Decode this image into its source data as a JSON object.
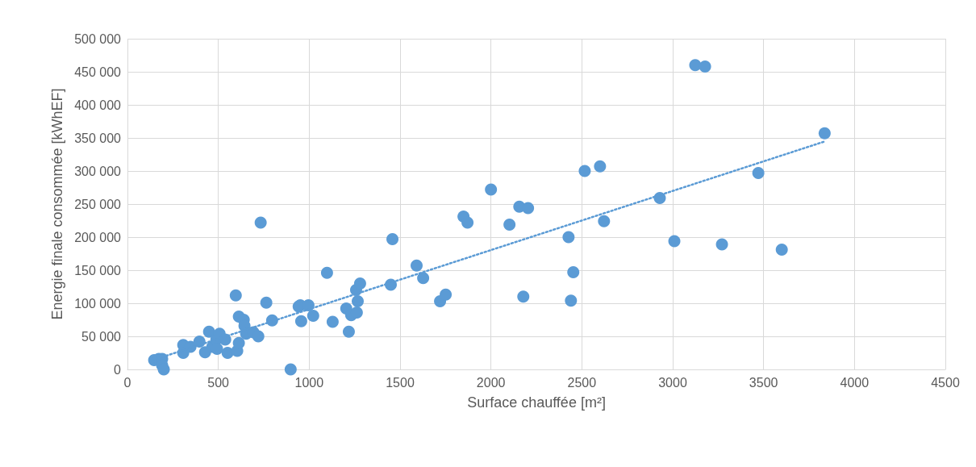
{
  "chart_data": {
    "type": "scatter",
    "xlabel": "Surface chauffée [m²]",
    "ylabel": "Energie finale consommée [kWhEF]",
    "xlim": [
      0,
      4500
    ],
    "xticks": [
      0,
      500,
      1000,
      1500,
      2000,
      2500,
      3000,
      3500,
      4000,
      4500
    ],
    "ylim": [
      0,
      500000
    ],
    "yticks": [
      {
        "value": 0,
        "label": "0"
      },
      {
        "value": 50000,
        "label": "50 000"
      },
      {
        "value": 100000,
        "label": "100 000"
      },
      {
        "value": 150000,
        "label": "150 000"
      },
      {
        "value": 200000,
        "label": "200 000"
      },
      {
        "value": 250000,
        "label": "250 000"
      },
      {
        "value": 300000,
        "label": "300 000"
      },
      {
        "value": 350000,
        "label": "350 000"
      },
      {
        "value": 400000,
        "label": "400 000"
      },
      {
        "value": 450000,
        "label": "450 000"
      },
      {
        "value": 500000,
        "label": "500 000"
      }
    ],
    "grid": true,
    "marker": "circle",
    "series": [
      {
        "color": "#5b9bd5",
        "x": [
          147,
          173,
          191,
          191,
          200,
          307,
          307,
          347,
          396,
          427,
          449,
          467,
          489,
          493,
          507,
          538,
          551,
          604,
          596,
          613,
          613,
          640,
          644,
          653,
          693,
          720,
          733,
          764,
          796,
          898,
          942,
          951,
          956,
          996,
          1022,
          1098,
          1129,
          1204,
          1218,
          1231,
          1258,
          1262,
          1267,
          1280,
          1449,
          1458,
          1591,
          1627,
          1720,
          1751,
          1849,
          1871,
          2000,
          2102,
          2156,
          2178,
          2204,
          2427,
          2440,
          2453,
          2516,
          2600,
          2622,
          2929,
          3009,
          3124,
          3178,
          3271,
          3471,
          3600,
          3836
        ],
        "values": [
          14000,
          16000,
          16000,
          6000,
          0,
          37000,
          25000,
          34000,
          42000,
          26000,
          57000,
          34000,
          45000,
          31000,
          54000,
          45000,
          25000,
          28000,
          112000,
          80000,
          40000,
          75000,
          66000,
          54000,
          56000,
          50000,
          222000,
          101000,
          74000,
          0,
          95000,
          97000,
          73000,
          97000,
          81000,
          146000,
          72000,
          92000,
          57000,
          82000,
          120000,
          86000,
          103000,
          130000,
          128000,
          197000,
          157000,
          138000,
          103000,
          113000,
          231000,
          222000,
          272000,
          219000,
          246000,
          110000,
          244000,
          200000,
          104000,
          147000,
          300000,
          307000,
          224000,
          259000,
          194000,
          460000,
          458000,
          189000,
          297000,
          181000,
          357000
        ]
      },
      {
        "type": "line",
        "color": "#5b9bd5",
        "line_style": "dotted",
        "marker": "none",
        "x": [
          150,
          3840
        ],
        "values": [
          15000,
          345000
        ]
      }
    ]
  }
}
